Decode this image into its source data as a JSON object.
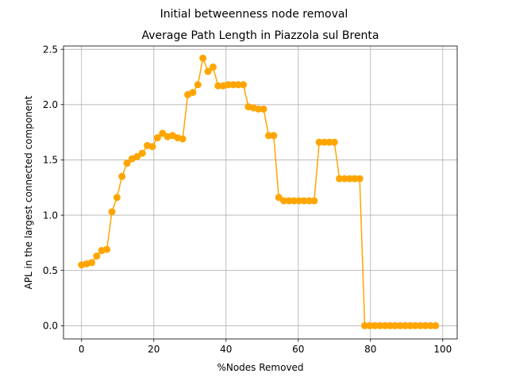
{
  "chart_data": {
    "type": "line",
    "suptitle": "Initial betweenness node removal",
    "title": "Average Path Length in Piazzola sul Brenta",
    "xlabel": "%Nodes Removed",
    "ylabel": "APL in the largest connected component",
    "xlim": [
      -5,
      104
    ],
    "ylim": [
      -0.12,
      2.53
    ],
    "xticks": [
      0,
      20,
      40,
      60,
      80,
      100
    ],
    "xtick_labels": [
      "0",
      "20",
      "40",
      "60",
      "80",
      "100"
    ],
    "yticks": [
      0.0,
      0.5,
      1.0,
      1.5,
      2.0,
      2.5
    ],
    "ytick_labels": [
      "0.0",
      "0.5",
      "1.0",
      "1.5",
      "2.0",
      "2.5"
    ],
    "grid": true,
    "color": "#ffa500",
    "series": [
      {
        "x": [
          0,
          1.4,
          2.8,
          4.2,
          5.6,
          7.0,
          8.4,
          9.8,
          11.2,
          12.6,
          14.0,
          15.4,
          16.8,
          18.2,
          19.6,
          21.0,
          22.4,
          23.8,
          25.2,
          26.6,
          28.0,
          29.4,
          30.8,
          32.2,
          33.6,
          35.0,
          36.4,
          37.8,
          39.2,
          40.6,
          42.0,
          43.4,
          44.8,
          46.2,
          47.6,
          49.0,
          50.4,
          51.8,
          53.2,
          54.6,
          56.0,
          57.4,
          58.8,
          60.2,
          61.6,
          63.0,
          64.4,
          65.8,
          67.2,
          68.6,
          70.0,
          71.4,
          72.8,
          74.2,
          75.6,
          77.0,
          78.4,
          79.8,
          81.2,
          82.6,
          84.0,
          85.4,
          86.8,
          88.2,
          89.6,
          91.0,
          92.4,
          93.8,
          95.2,
          96.6,
          98.0
        ],
        "y": [
          0.55,
          0.56,
          0.57,
          0.63,
          0.68,
          0.69,
          1.03,
          1.16,
          1.35,
          1.47,
          1.51,
          1.53,
          1.56,
          1.63,
          1.62,
          1.7,
          1.74,
          1.71,
          1.72,
          1.7,
          1.69,
          2.09,
          2.11,
          2.18,
          2.42,
          2.3,
          2.34,
          2.17,
          2.17,
          2.18,
          2.18,
          2.18,
          2.18,
          1.98,
          1.97,
          1.96,
          1.96,
          1.72,
          1.72,
          1.16,
          1.13,
          1.13,
          1.13,
          1.13,
          1.13,
          1.13,
          1.13,
          1.66,
          1.66,
          1.66,
          1.66,
          1.33,
          1.33,
          1.33,
          1.33,
          1.33,
          0,
          0,
          0,
          0,
          0,
          0,
          0,
          0,
          0,
          0,
          0,
          0,
          0,
          0,
          0
        ]
      }
    ]
  }
}
